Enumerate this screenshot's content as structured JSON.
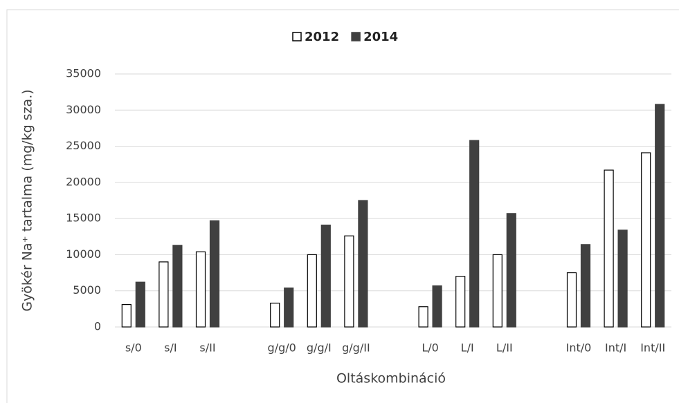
{
  "chart_data": {
    "type": "bar",
    "x_label": "Oltáskombináció",
    "y_label": "Gyökér Na⁺ tartalma (mg/kg sza.)",
    "categories": [
      "s/0",
      "s/I",
      "s/II",
      null,
      "g/g/0",
      "g/g/I",
      "g/g/II",
      null,
      "L/0",
      "L/I",
      "L/II",
      null,
      "Int/0",
      "Int/I",
      "Int/II"
    ],
    "series": [
      {
        "name": "2012",
        "color": "#ffffff",
        "edgecolor": "#000000",
        "values": [
          3100,
          9000,
          10400,
          null,
          3300,
          10000,
          12600,
          null,
          2800,
          7000,
          10000,
          null,
          7500,
          21700,
          24100
        ]
      },
      {
        "name": "2014",
        "color": "#404040",
        "edgecolor": "#404040",
        "values": [
          6200,
          11300,
          14700,
          null,
          5400,
          14100,
          17500,
          null,
          5700,
          25800,
          15700,
          null,
          11400,
          13400,
          30800
        ]
      }
    ],
    "ylim": [
      0,
      35000
    ],
    "yticks": [
      0,
      5000,
      10000,
      15000,
      20000,
      25000,
      30000,
      35000
    ],
    "grid": true,
    "legend": "top"
  }
}
